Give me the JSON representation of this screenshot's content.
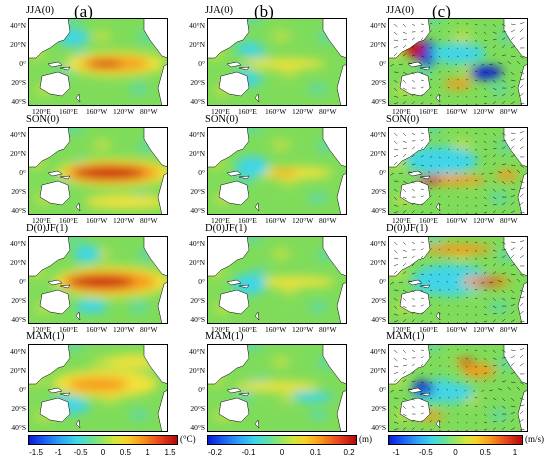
{
  "column_labels": [
    "(a)",
    "(b)",
    "(c)"
  ],
  "rows": [
    {
      "season": "JJA(0)"
    },
    {
      "season": "SON(0)"
    },
    {
      "season": "D(0)JF(1)"
    },
    {
      "season": "MAM(1)"
    }
  ],
  "lat_labels": [
    "40°N",
    "20°N",
    "0°",
    "20°S",
    "40°S"
  ],
  "lon_labels": [
    "120°E",
    "160°E",
    "160°W",
    "120°W",
    "80°W"
  ],
  "colorbars": [
    {
      "unit": "(°C)",
      "ticks": [
        "-1.5",
        "-1",
        "-0.5",
        "0",
        "0.5",
        "1",
        "1.5"
      ]
    },
    {
      "unit": "(m)",
      "ticks": [
        "-0.2",
        "-0.1",
        "0",
        "0.1",
        "0.2"
      ]
    },
    {
      "unit": "(m/s)",
      "ticks": [
        "-1",
        "-0.5",
        "0",
        "0.5",
        "1"
      ]
    }
  ],
  "colors": {
    "deep_blue": "#0a1bd6",
    "cyan": "#3fd6e8",
    "green": "#7fdc5a",
    "yellow": "#f2e23a",
    "orange": "#f79a1e",
    "red": "#c8100f",
    "land": "#ffffff"
  }
}
